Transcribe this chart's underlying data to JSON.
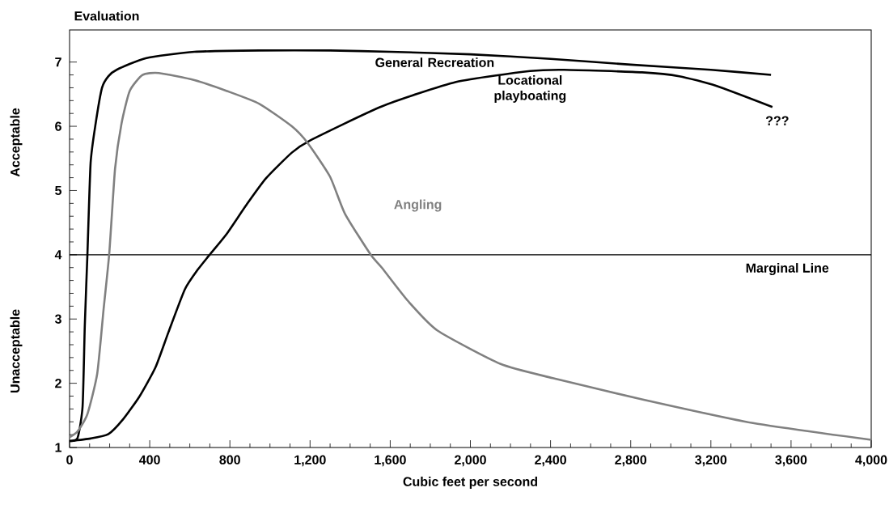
{
  "chart_data": {
    "type": "line",
    "ylabel": "Evaluation",
    "xlabel": "Cubic feet per second",
    "xlim": [
      0,
      4000
    ],
    "ylim": [
      1,
      7.5
    ],
    "xticks": [
      0,
      400,
      800,
      {
        "value": 1200,
        "label": "1,200"
      },
      {
        "value": 1600,
        "label": "1,600"
      },
      {
        "value": 2000,
        "label": "2,000"
      },
      {
        "value": 2400,
        "label": "2,400"
      },
      {
        "value": 2800,
        "label": "2,800"
      },
      {
        "value": 3200,
        "label": "3,200"
      },
      {
        "value": 3600,
        "label": "3,600"
      },
      {
        "value": 4000,
        "label": "4,000"
      }
    ],
    "yticks": [
      1,
      2,
      3,
      4,
      5,
      6,
      7
    ],
    "grid": false,
    "legend": false,
    "marker": "none",
    "line_style": "solid",
    "series": [
      {
        "name": "General Recreation",
        "color": "#000000",
        "x": [
          0,
          40,
          65,
          76,
          89,
          105,
          130,
          162,
          194,
          235,
          380,
          623,
          947,
          1300,
          1600,
          2000,
          2400,
          2800,
          3200,
          3500
        ],
        "values": [
          1.1,
          1.15,
          1.64,
          2.9,
          4.0,
          5.43,
          6.04,
          6.6,
          6.78,
          6.88,
          7.06,
          7.16,
          7.18,
          7.18,
          7.16,
          7.12,
          7.05,
          6.96,
          6.88,
          6.8
        ]
      },
      {
        "name": "Locational playboating",
        "color": "#000000",
        "x": [
          0,
          105,
          194,
          267,
          348,
          429,
          494,
          575,
          640,
          704,
          785,
          883,
          980,
          1109,
          1200,
          1558,
          1929,
          2298,
          2468,
          2857,
          3042,
          3226,
          3507
        ],
        "values": [
          1.1,
          1.14,
          1.21,
          1.44,
          1.79,
          2.25,
          2.8,
          3.46,
          3.77,
          4.02,
          4.33,
          4.78,
          5.19,
          5.59,
          5.78,
          6.31,
          6.69,
          6.86,
          6.88,
          6.84,
          6.78,
          6.63,
          6.3
        ]
      },
      {
        "name": "Angling",
        "color": "#808080",
        "x": [
          0,
          40,
          89,
          138,
          170,
          198,
          227,
          259,
          300,
          364,
          445,
          623,
          785,
          947,
          1109,
          1188,
          1299,
          1374,
          1503,
          1558,
          1689,
          1836,
          2151,
          2411,
          2856,
          3410,
          4000
        ],
        "values": [
          1.16,
          1.25,
          1.52,
          2.15,
          3.16,
          4.02,
          5.34,
          6.04,
          6.55,
          6.8,
          6.83,
          6.72,
          6.55,
          6.35,
          6.0,
          5.74,
          5.22,
          4.64,
          4.0,
          3.8,
          3.28,
          2.82,
          2.3,
          2.08,
          1.75,
          1.38,
          1.12
        ]
      }
    ],
    "ref_lines": [
      {
        "axis": "y",
        "value": 4,
        "label": "Marginal Line",
        "color": "#000000"
      }
    ],
    "annotations": [
      "Acceptable",
      "Unacceptable",
      "???"
    ]
  }
}
